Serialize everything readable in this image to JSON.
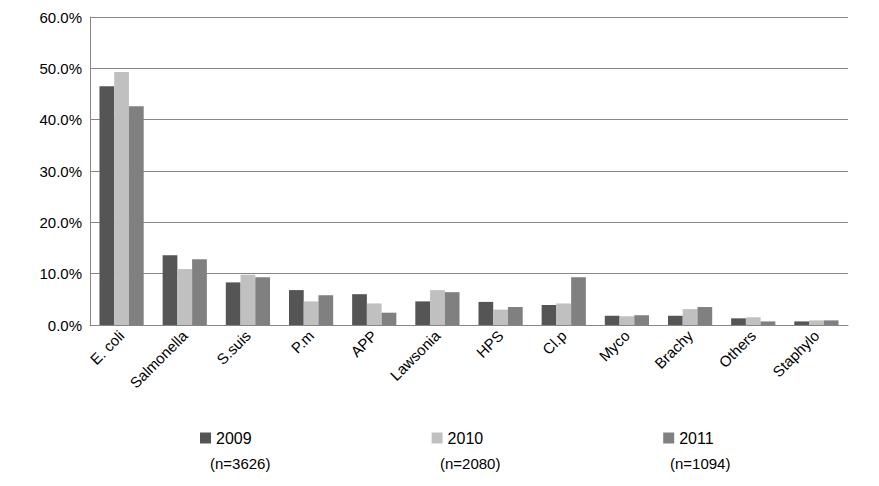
{
  "chart_data": {
    "type": "bar",
    "categories": [
      "E. coli",
      "Salmonella",
      "S.suis",
      "P.m",
      "APP",
      "Lawsonia",
      "HPS",
      "Cl.p",
      "Myco",
      "Brachy",
      "Others",
      "Staphylo"
    ],
    "series": [
      {
        "name": "2009",
        "color": "#555555",
        "values": [
          46.5,
          13.6,
          8.3,
          6.8,
          6.0,
          4.6,
          4.5,
          3.9,
          1.8,
          1.8,
          1.3,
          0.7
        ]
      },
      {
        "name": "2010",
        "color": "#c0c0c0",
        "values": [
          49.3,
          10.9,
          9.8,
          4.6,
          4.2,
          6.8,
          3.0,
          4.2,
          1.7,
          3.1,
          1.5,
          0.9
        ]
      },
      {
        "name": "2011",
        "color": "#808080",
        "values": [
          42.6,
          12.8,
          9.3,
          5.8,
          2.4,
          6.4,
          3.5,
          9.3,
          1.9,
          3.5,
          0.7,
          0.9
        ]
      }
    ],
    "annotations": [
      "(n=3626)",
      "(n=2080)",
      "(n=1094)"
    ],
    "ylim": [
      0,
      60
    ],
    "yticks": [
      {
        "value": 0,
        "label": "0.0%"
      },
      {
        "value": 10,
        "label": "10.0%"
      },
      {
        "value": 20,
        "label": "20.0%"
      },
      {
        "value": 30,
        "label": "30.0%"
      },
      {
        "value": 40,
        "label": "40.0%"
      },
      {
        "value": 50,
        "label": "50.0%"
      },
      {
        "value": 60,
        "label": "60.0%"
      }
    ],
    "grid": true,
    "legend": "bottom"
  }
}
